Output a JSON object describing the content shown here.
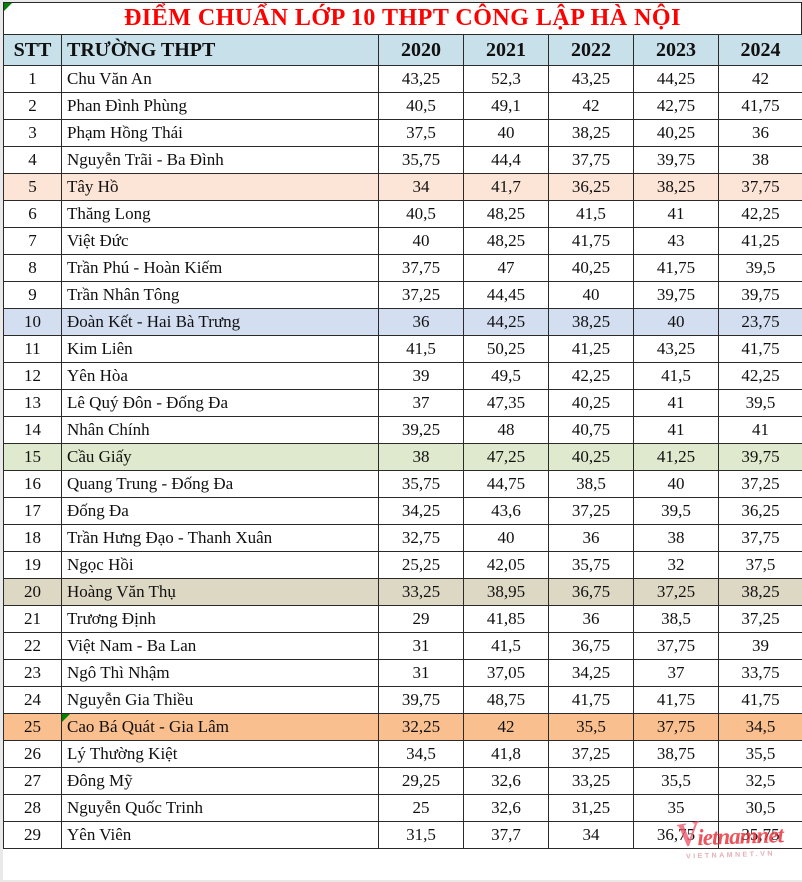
{
  "title": "ĐIỂM CHUẨN LỚP 10 THPT CÔNG LẬP HÀ NỘI",
  "colors": {
    "header_bg": "#c8e0ea",
    "title_red": "#ff0000",
    "peach": "#fce4d6",
    "blue": "#d3def1",
    "green": "#dfe9cd",
    "tan": "#ddd8c4",
    "orange": "#fabf8f"
  },
  "table": {
    "columns": [
      "STT",
      "TRƯỜNG THPT",
      "2020",
      "2021",
      "2022",
      "2023",
      "2024"
    ],
    "rows": [
      {
        "stt": "1",
        "name": "Chu Văn An",
        "scores": [
          "43,25",
          "52,3",
          "43,25",
          "44,25",
          "42"
        ],
        "bg": null
      },
      {
        "stt": "2",
        "name": "Phan Đình Phùng",
        "scores": [
          "40,5",
          "49,1",
          "42",
          "42,75",
          "41,75"
        ],
        "bg": null
      },
      {
        "stt": "3",
        "name": "Phạm Hồng Thái",
        "scores": [
          "37,5",
          "40",
          "38,25",
          "40,25",
          "36"
        ],
        "bg": null
      },
      {
        "stt": "4",
        "name": "Nguyễn Trãi - Ba Đình",
        "scores": [
          "35,75",
          "44,4",
          "37,75",
          "39,75",
          "38"
        ],
        "bg": null
      },
      {
        "stt": "5",
        "name": "Tây Hồ",
        "scores": [
          "34",
          "41,7",
          "36,25",
          "38,25",
          "37,75"
        ],
        "bg": "peach"
      },
      {
        "stt": "6",
        "name": "Thăng Long",
        "scores": [
          "40,5",
          "48,25",
          "41,5",
          "41",
          "42,25"
        ],
        "bg": null
      },
      {
        "stt": "7",
        "name": "Việt Đức",
        "scores": [
          "40",
          "48,25",
          "41,75",
          "43",
          "41,25"
        ],
        "bg": null
      },
      {
        "stt": "8",
        "name": "Trần Phú - Hoàn Kiếm",
        "scores": [
          "37,75",
          "47",
          "40,25",
          "41,75",
          "39,5"
        ],
        "bg": null
      },
      {
        "stt": "9",
        "name": "Trần Nhân Tông",
        "scores": [
          "37,25",
          "44,45",
          "40",
          "39,75",
          "39,75"
        ],
        "bg": null
      },
      {
        "stt": "10",
        "name": "Đoàn Kết - Hai Bà Trưng",
        "scores": [
          "36",
          "44,25",
          "38,25",
          "40",
          "23,75"
        ],
        "bg": "blue"
      },
      {
        "stt": "11",
        "name": "Kim Liên",
        "scores": [
          "41,5",
          "50,25",
          "41,25",
          "43,25",
          "41,75"
        ],
        "bg": null
      },
      {
        "stt": "12",
        "name": "Yên Hòa",
        "scores": [
          "39",
          "49,5",
          "42,25",
          "41,5",
          "42,25"
        ],
        "bg": null
      },
      {
        "stt": "13",
        "name": "Lê Quý Đôn - Đống Đa",
        "scores": [
          "37",
          "47,35",
          "40,25",
          "41",
          "39,5"
        ],
        "bg": null
      },
      {
        "stt": "14",
        "name": "Nhân Chính",
        "scores": [
          "39,25",
          "48",
          "40,75",
          "41",
          "41"
        ],
        "bg": null
      },
      {
        "stt": "15",
        "name": "Cầu Giấy",
        "scores": [
          "38",
          "47,25",
          "40,25",
          "41,25",
          "39,75"
        ],
        "bg": "green"
      },
      {
        "stt": "16",
        "name": "Quang Trung - Đống Đa",
        "scores": [
          "35,75",
          "44,75",
          "38,5",
          "40",
          "37,25"
        ],
        "bg": null
      },
      {
        "stt": "17",
        "name": "Đống Đa",
        "scores": [
          "34,25",
          "43,6",
          "37,25",
          "39,5",
          "36,25"
        ],
        "bg": null
      },
      {
        "stt": "18",
        "name": "Trần Hưng Đạo - Thanh Xuân",
        "scores": [
          "32,75",
          "40",
          "36",
          "38",
          "37,75"
        ],
        "bg": null
      },
      {
        "stt": "19",
        "name": "Ngọc Hồi",
        "scores": [
          "25,25",
          "42,05",
          "35,75",
          "32",
          "37,5"
        ],
        "bg": null
      },
      {
        "stt": "20",
        "name": "Hoàng Văn Thụ",
        "scores": [
          "33,25",
          "38,95",
          "36,75",
          "37,25",
          "38,25"
        ],
        "bg": "tan"
      },
      {
        "stt": "21",
        "name": "Trương Định",
        "scores": [
          "29",
          "41,85",
          "36",
          "38,5",
          "37,25"
        ],
        "bg": null
      },
      {
        "stt": "22",
        "name": "Việt Nam - Ba Lan",
        "scores": [
          "31",
          "41,5",
          "36,75",
          "37,75",
          "39"
        ],
        "bg": null
      },
      {
        "stt": "23",
        "name": "Ngô Thì Nhậm",
        "scores": [
          "31",
          "37,05",
          "34,25",
          "37",
          "33,75"
        ],
        "bg": null
      },
      {
        "stt": "24",
        "name": "Nguyễn Gia Thiều",
        "scores": [
          "39,75",
          "48,75",
          "41,75",
          "41,75",
          "41,75"
        ],
        "bg": null
      },
      {
        "stt": "25",
        "name": "Cao Bá Quát - Gia Lâm",
        "scores": [
          "32,25",
          "42",
          "35,5",
          "37,75",
          "34,5"
        ],
        "bg": "orange",
        "flag": true
      },
      {
        "stt": "26",
        "name": "Lý Thường Kiệt",
        "scores": [
          "34,5",
          "41,8",
          "37,25",
          "38,75",
          "35,5"
        ],
        "bg": null
      },
      {
        "stt": "27",
        "name": "Đông Mỹ",
        "scores": [
          "29,25",
          "32,6",
          "33,25",
          "35,5",
          "32,5"
        ],
        "bg": null
      },
      {
        "stt": "28",
        "name": "Nguyễn Quốc Trinh",
        "scores": [
          "25",
          "32,6",
          "31,25",
          "35",
          "30,5"
        ],
        "bg": null
      },
      {
        "stt": "29",
        "name": "Yên Viên",
        "scores": [
          "31,5",
          "37,7",
          "34",
          "36,75",
          "35,75"
        ],
        "bg": null
      }
    ]
  },
  "watermark": {
    "initial": "V",
    "rest": "ietnamnet",
    "domain": "VIETNAMNET.VN"
  }
}
